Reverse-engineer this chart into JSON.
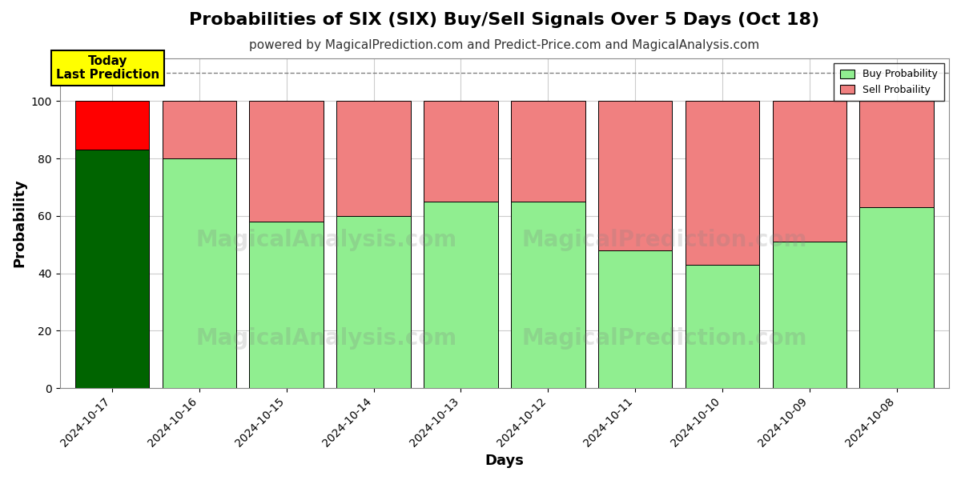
{
  "title": "Probabilities of SIX (SIX) Buy/Sell Signals Over 5 Days (Oct 18)",
  "subtitle": "powered by MagicalPrediction.com and Predict-Price.com and MagicalAnalysis.com",
  "xlabel": "Days",
  "ylabel": "Probability",
  "dates": [
    "2024-10-17",
    "2024-10-16",
    "2024-10-15",
    "2024-10-14",
    "2024-10-13",
    "2024-10-12",
    "2024-10-11",
    "2024-10-10",
    "2024-10-09",
    "2024-10-08"
  ],
  "buy_probs": [
    83,
    80,
    58,
    60,
    65,
    65,
    48,
    43,
    51,
    63
  ],
  "sell_probs": [
    17,
    20,
    42,
    40,
    35,
    35,
    52,
    57,
    49,
    37
  ],
  "today_buy_color": "#006400",
  "today_sell_color": "#FF0000",
  "buy_color_light": "#90EE90",
  "sell_color_light": "#F08080",
  "annotation_text": "Today\nLast Prediction",
  "annotation_bg": "#FFFF00",
  "ylim": [
    0,
    115
  ],
  "dashed_line_y": 110,
  "legend_buy_label": "Buy Probability",
  "legend_sell_label": "Sell Probaility",
  "background_color": "#ffffff",
  "grid_color": "#cccccc",
  "title_fontsize": 16,
  "subtitle_fontsize": 11,
  "axis_label_fontsize": 13,
  "tick_fontsize": 10,
  "bar_width": 0.85,
  "bar_edge_color": "#000000"
}
